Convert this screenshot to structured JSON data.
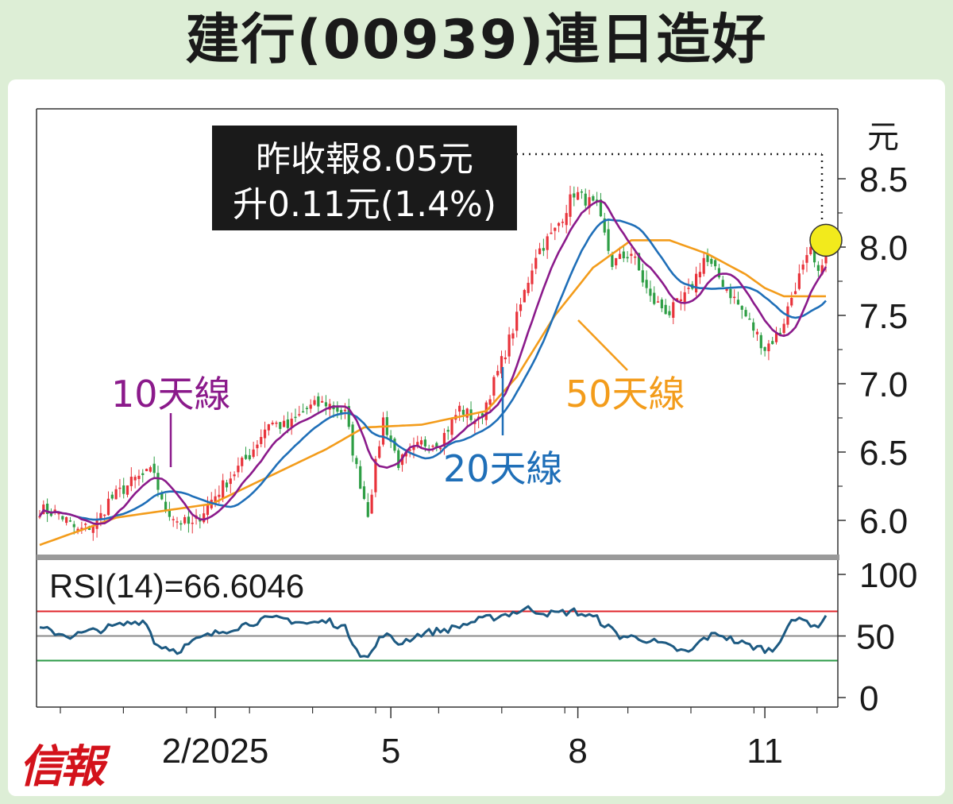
{
  "title": "建行(00939)連日造好",
  "logo": "信報",
  "colors": {
    "background": "#ddeed6",
    "up_candle": "#e8333b",
    "down_candle": "#2e9e45",
    "ma10": "#8b1a8b",
    "ma20": "#1f6fb8",
    "ma50": "#f39c1b",
    "rsi_line": "#1d5a82",
    "rsi_overbought": "#e0262b",
    "rsi_mid": "#8a8a8a",
    "rsi_oversold": "#2a9a46",
    "marker": "#f2ea1c"
  },
  "chart_data": [
    {
      "type": "line",
      "subtype": "candlestick",
      "y_unit": "元",
      "ylim": [
        5.8,
        8.7
      ],
      "y_ticks": [
        "6.0",
        "6.5",
        "7.0",
        "7.5",
        "8.0",
        "8.5"
      ],
      "x_ticks": [
        "2/2025",
        "5",
        "8",
        "11"
      ],
      "annotation": {
        "line1": "昨收報8.05元",
        "line2": "升0.11元(1.4%)",
        "last_close": 8.05
      },
      "series_labels": {
        "ma10": "10天線",
        "ma20": "20天線",
        "ma50": "50天線"
      },
      "close_anchors": [
        [
          0,
          6.08
        ],
        [
          5,
          6.05
        ],
        [
          10,
          5.92
        ],
        [
          15,
          5.98
        ],
        [
          18,
          6.14
        ],
        [
          25,
          6.3
        ],
        [
          30,
          6.36
        ],
        [
          32,
          6.12
        ],
        [
          36,
          6.0
        ],
        [
          40,
          5.96
        ],
        [
          45,
          6.15
        ],
        [
          50,
          6.32
        ],
        [
          55,
          6.48
        ],
        [
          60,
          6.72
        ],
        [
          65,
          6.68
        ],
        [
          70,
          6.82
        ],
        [
          75,
          6.86
        ],
        [
          80,
          6.78
        ],
        [
          83,
          6.38
        ],
        [
          86,
          6.06
        ],
        [
          90,
          6.74
        ],
        [
          94,
          6.42
        ],
        [
          97,
          6.48
        ],
        [
          100,
          6.56
        ],
        [
          105,
          6.58
        ],
        [
          110,
          6.82
        ],
        [
          115,
          6.72
        ],
        [
          120,
          7.08
        ],
        [
          125,
          7.48
        ],
        [
          130,
          7.95
        ],
        [
          135,
          8.12
        ],
        [
          140,
          8.4
        ],
        [
          143,
          8.35
        ],
        [
          146,
          8.28
        ],
        [
          150,
          7.88
        ],
        [
          155,
          7.96
        ],
        [
          160,
          7.62
        ],
        [
          165,
          7.52
        ],
        [
          170,
          7.66
        ],
        [
          174,
          7.92
        ],
        [
          178,
          7.78
        ],
        [
          182,
          7.62
        ],
        [
          186,
          7.45
        ],
        [
          190,
          7.26
        ],
        [
          194,
          7.38
        ],
        [
          198,
          7.72
        ],
        [
          202,
          7.96
        ],
        [
          204,
          7.78
        ],
        [
          206,
          8.05
        ]
      ],
      "ma50_anchors": [
        [
          0,
          5.82
        ],
        [
          20,
          6.02
        ],
        [
          45,
          6.12
        ],
        [
          60,
          6.32
        ],
        [
          75,
          6.52
        ],
        [
          85,
          6.68
        ],
        [
          100,
          6.7
        ],
        [
          117,
          6.8
        ],
        [
          125,
          7.05
        ],
        [
          135,
          7.5
        ],
        [
          145,
          7.85
        ],
        [
          155,
          8.05
        ],
        [
          165,
          8.05
        ],
        [
          175,
          7.95
        ],
        [
          185,
          7.8
        ],
        [
          190,
          7.7
        ],
        [
          195,
          7.64
        ],
        [
          206,
          7.64
        ]
      ]
    },
    {
      "type": "line",
      "label": "RSI(14)=66.6046",
      "value": 66.6046,
      "ylim": [
        0,
        100
      ],
      "y_ticks": [
        "0",
        "50",
        "100"
      ],
      "levels": {
        "overbought": 70,
        "mid": 50,
        "oversold": 30
      },
      "x_ticks": [
        "2/2025",
        "5",
        "8",
        "11"
      ]
    }
  ]
}
